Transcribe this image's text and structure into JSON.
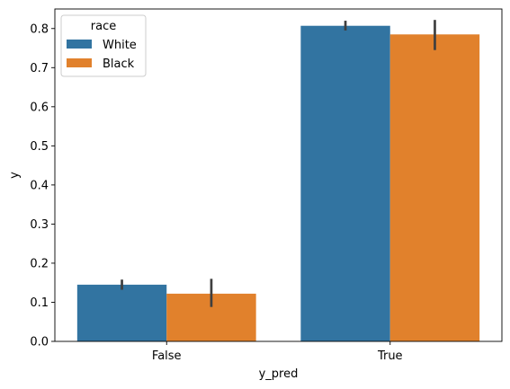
{
  "chart_data": {
    "type": "bar",
    "xlabel": "y_pred",
    "ylabel": "y",
    "categories": [
      "False",
      "True"
    ],
    "ylim": [
      0,
      0.85
    ],
    "yticks": [
      0.0,
      0.1,
      0.2,
      0.3,
      0.4,
      0.5,
      0.6,
      0.7,
      0.8
    ],
    "ytick_labels": [
      "0.0",
      "0.1",
      "0.2",
      "0.3",
      "0.4",
      "0.5",
      "0.6",
      "0.7",
      "0.8"
    ],
    "grid": false,
    "legend": {
      "title": "race",
      "position": "top-left",
      "entries": [
        "White",
        "Black"
      ]
    },
    "series": [
      {
        "name": "White",
        "color": "#3274a1",
        "values": [
          0.145,
          0.807
        ],
        "ci_low": [
          0.132,
          0.795
        ],
        "ci_high": [
          0.158,
          0.82
        ]
      },
      {
        "name": "Black",
        "color": "#e1812c",
        "values": [
          0.122,
          0.785
        ],
        "ci_low": [
          0.088,
          0.745
        ],
        "ci_high": [
          0.16,
          0.822
        ]
      }
    ],
    "errorbar_color": "#3f3f3f"
  }
}
